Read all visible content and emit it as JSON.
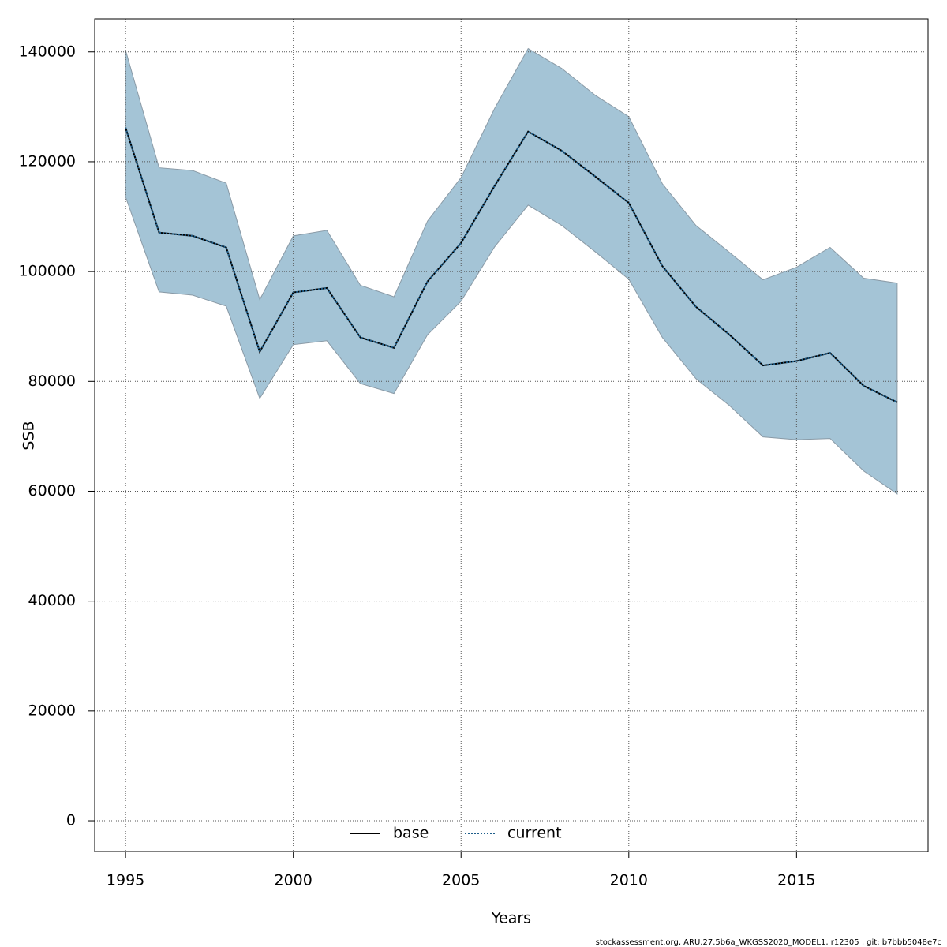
{
  "chart_data": {
    "type": "line",
    "x_label": "Years",
    "y_label": "SSB",
    "x": [
      1995,
      1996,
      1997,
      1998,
      1999,
      2000,
      2001,
      2002,
      2003,
      2004,
      2005,
      2006,
      2007,
      2008,
      2009,
      2010,
      2011,
      2012,
      2013,
      2014,
      2015,
      2016,
      2017,
      2018
    ],
    "band": {
      "color": "#a4c4d6",
      "edge": "#8a9aa6",
      "upper": [
        140300,
        118900,
        118400,
        116100,
        94900,
        106500,
        107500,
        97500,
        95400,
        109200,
        117100,
        129700,
        140600,
        137000,
        132100,
        128200,
        116000,
        108400,
        103500,
        98500,
        100800,
        104400,
        98800,
        97900
      ],
      "lower": [
        113600,
        96300,
        95700,
        93700,
        76900,
        86700,
        87400,
        79600,
        77800,
        88500,
        94600,
        104500,
        112100,
        108400,
        103600,
        98600,
        88000,
        80500,
        75600,
        69900,
        69400,
        69600,
        63700,
        59500
      ]
    },
    "series": [
      {
        "name": "base",
        "color": "#000000",
        "dash": "solid",
        "values": [
          126200,
          107100,
          106500,
          104400,
          85400,
          96200,
          97000,
          88000,
          86100,
          98200,
          105200,
          115600,
          125500,
          122000,
          117300,
          112500,
          101000,
          93600,
          88500,
          82900,
          83700,
          85200,
          79200,
          76200
        ]
      },
      {
        "name": "current",
        "color": "#1f5f8b",
        "dash": "dotted",
        "values": [
          126200,
          107100,
          106500,
          104400,
          85400,
          96200,
          97000,
          88000,
          86100,
          98200,
          105200,
          115600,
          125500,
          122000,
          117300,
          112500,
          101000,
          93600,
          88500,
          82900,
          83700,
          85200,
          79200,
          76200
        ]
      }
    ],
    "xlim": [
      1994.08,
      2018.92
    ],
    "ylim": [
      -5600,
      146000
    ],
    "xticks": [
      1995,
      2000,
      2005,
      2010,
      2015
    ],
    "yticks": [
      0,
      20000,
      40000,
      60000,
      80000,
      100000,
      120000,
      140000
    ],
    "grid": true,
    "legend": "bottom",
    "footer": "stockassessment.org, ARU.27.5b6a_WKGSS2020_MODEL1, r12305 , git: b7bbb5048e7c"
  }
}
